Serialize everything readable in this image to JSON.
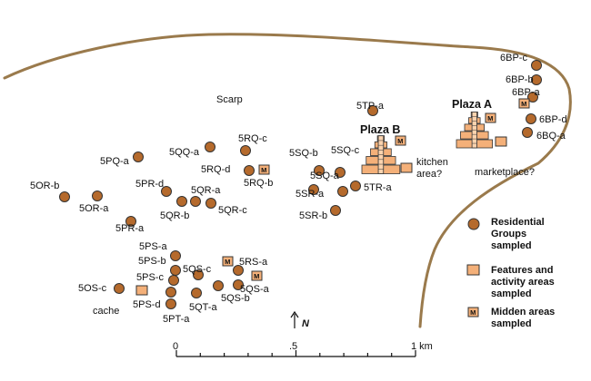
{
  "colors": {
    "scarp": "#9a7a4c",
    "residential": "#b56a2c",
    "feature": "#f4b079",
    "stroke": "#333333"
  },
  "scarp_label": "Scarp",
  "plazas": [
    "Plaza A",
    "Plaza B"
  ],
  "residential_groups": [
    "6BP-c",
    "6BP-b",
    "6BP-a",
    "6BP-d",
    "6BQ-a",
    "5TP-a",
    "5SQ-b",
    "5SQ-c",
    "5SQ-a",
    "5SR-a",
    "5TR-a",
    "5SR-b",
    "5QQ-a",
    "5RQ-c",
    "5RQ-d",
    "5RQ-b",
    "5PQ-a",
    "5OR-b",
    "5OR-a",
    "5PR-d",
    "5QR-a",
    "5QR-b",
    "5QR-c",
    "5PR-a",
    "5PS-a",
    "5PS-b",
    "5PS-c",
    "5QS-c",
    "5RS-a",
    "5QS-a",
    "5QS-b",
    "5QT-a",
    "5PS-d",
    "5PT-a",
    "5OS-c"
  ],
  "feature_labels": {
    "kitchen": "kitchen\narea?",
    "marketplace": "marketplace?",
    "cache": "cache"
  },
  "midden_symbol": "M",
  "legend": {
    "residential": "Residential\nGroups\nsampled",
    "features": "Features and\nactivity areas\nsampled",
    "midden": "Midden areas\nsampled"
  },
  "north": "N",
  "scale": {
    "start": "0",
    "mid": ".5",
    "end": "1 km"
  }
}
